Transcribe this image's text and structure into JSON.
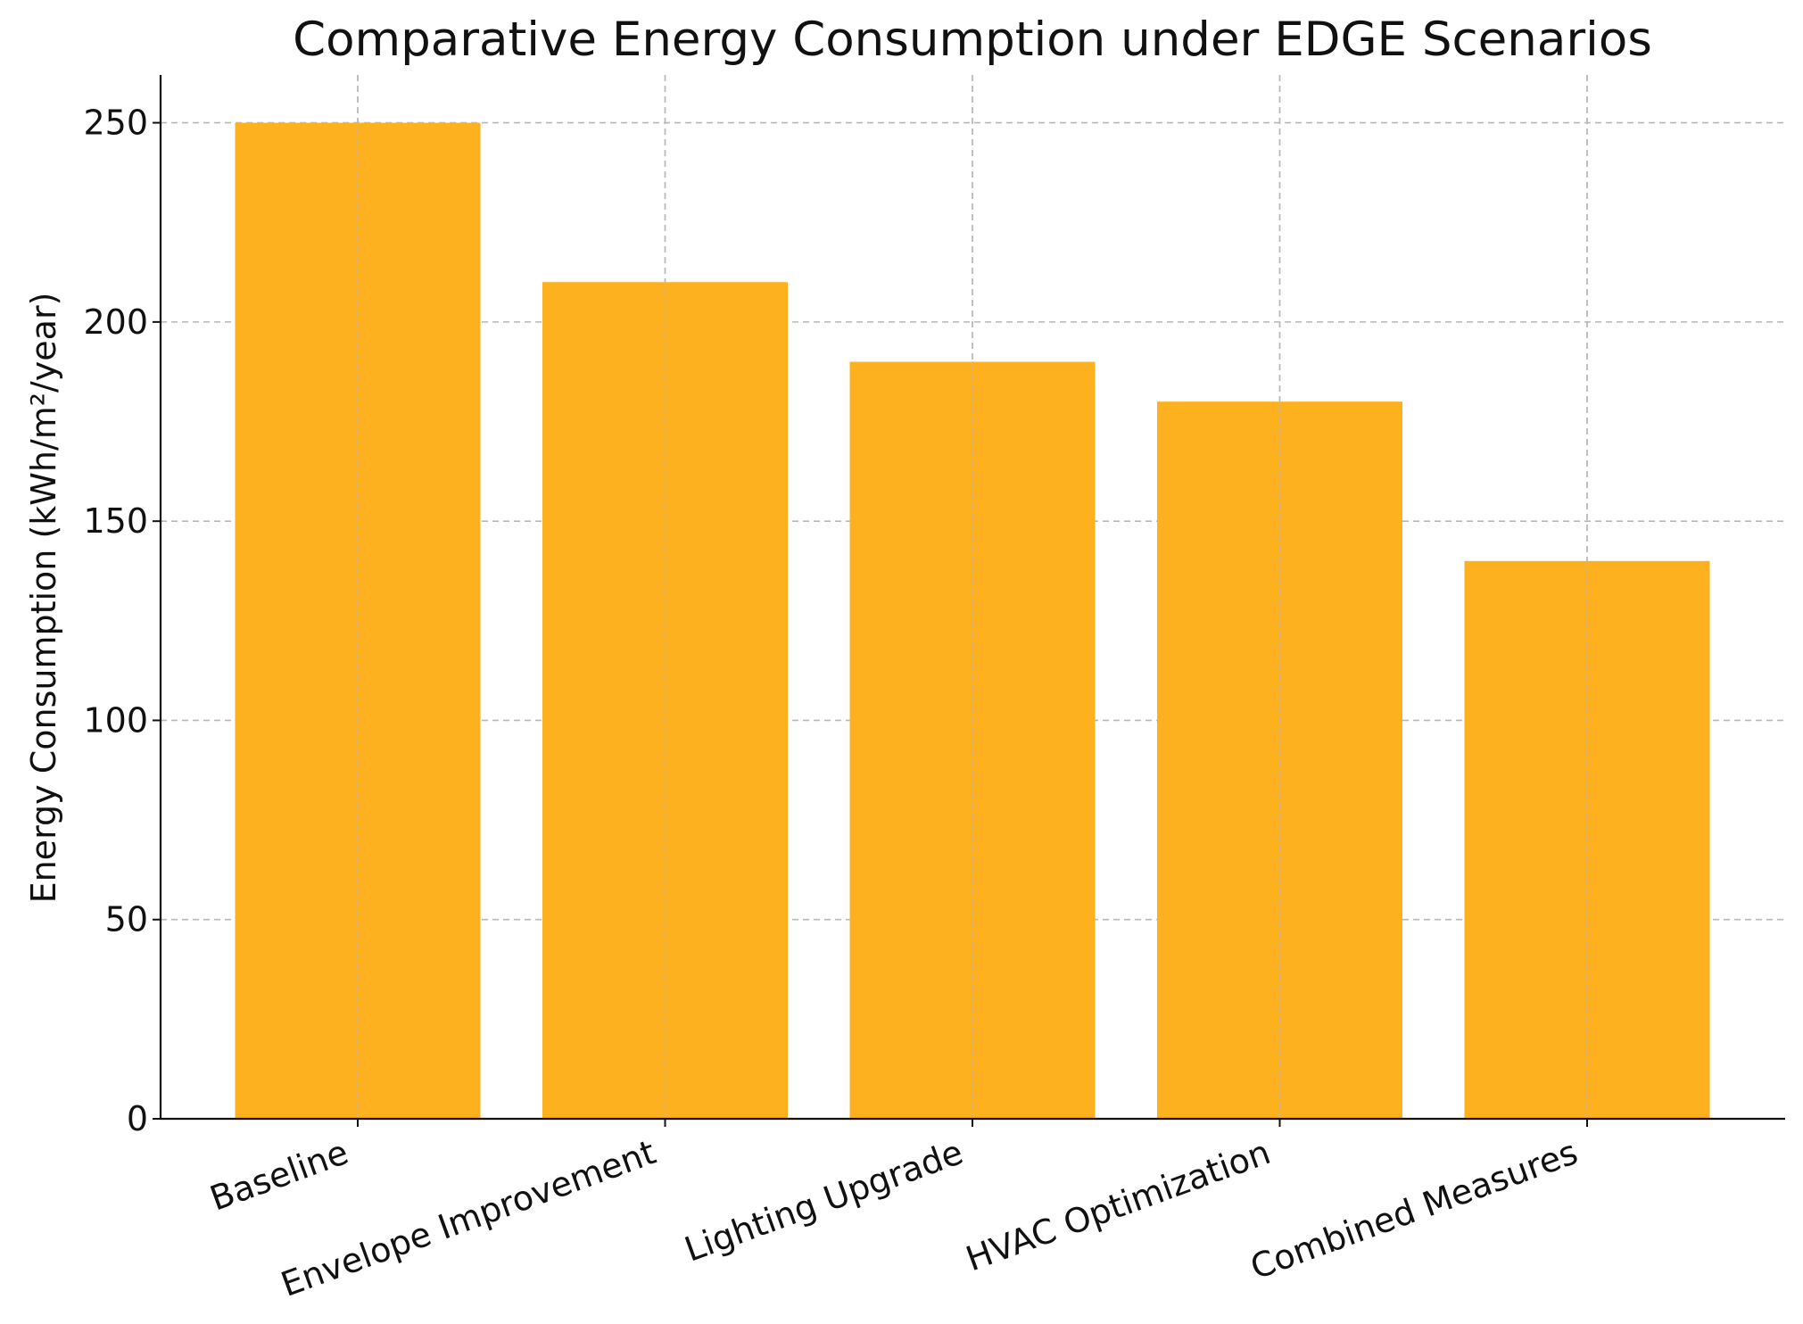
{
  "chart_data": {
    "type": "bar",
    "title": "Comparative Energy Consumption under EDGE Scenarios",
    "xlabel": "",
    "ylabel": "Energy Consumption (kWh/m²/year)",
    "categories": [
      "Baseline",
      "Envelope Improvement",
      "Lighting Upgrade",
      "HVAC Optimization",
      "Combined Measures"
    ],
    "values": [
      250,
      210,
      190,
      180,
      140
    ],
    "ylim": [
      0,
      262
    ],
    "yticks": [
      0,
      50,
      100,
      150,
      200,
      250
    ],
    "grid": true,
    "bar_color": "#FDB11E"
  }
}
